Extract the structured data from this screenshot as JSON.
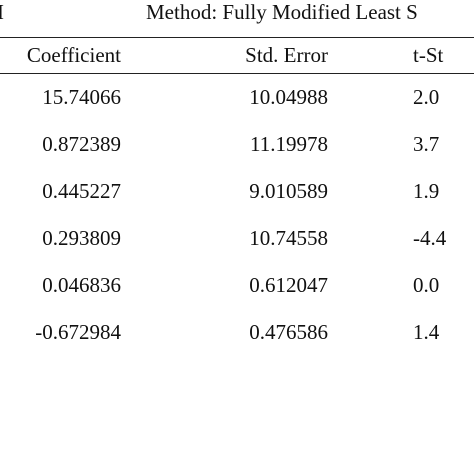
{
  "header": {
    "left": "I",
    "title": "Method: Fully Modified Least S"
  },
  "table": {
    "columns": [
      "Coefficient",
      "Std. Error",
      "t-St"
    ],
    "rows": [
      [
        "15.74066",
        "10.04988",
        "2.0"
      ],
      [
        "0.872389",
        "11.19978",
        "3.7"
      ],
      [
        "0.445227",
        "9.010589",
        "1.9"
      ],
      [
        "0.293809",
        "10.74558",
        "-4.4"
      ],
      [
        "0.046836",
        "0.612047",
        "0.0"
      ],
      [
        "-0.672984",
        "0.476586",
        "1.4"
      ]
    ]
  }
}
